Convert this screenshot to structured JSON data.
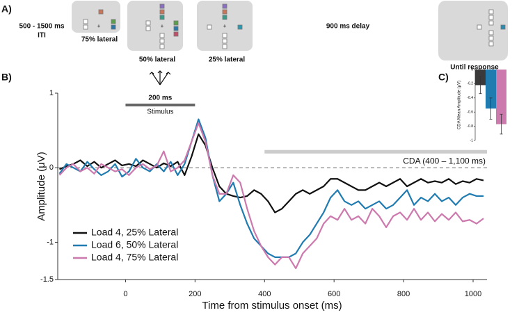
{
  "panel_a": {
    "label": "A)",
    "iti": [
      "500 - 1500 ms",
      "ITI"
    ],
    "conditions": [
      "75% lateral",
      "50% lateral",
      "25% lateral"
    ],
    "delay": "900 ms delay",
    "response": "Until response"
  },
  "chart_data": [
    {
      "type": "line",
      "panel_label": "B)",
      "xlabel": "Time from stimulus onset (ms)",
      "ylabel": "Amplitude (μV)",
      "xlim": [
        -195,
        1040
      ],
      "ylim": [
        -1.5,
        1
      ],
      "xticks": [
        0,
        200,
        400,
        600,
        800,
        1000
      ],
      "yticks": [
        1,
        0,
        -1,
        -1.5
      ],
      "zero_line": true,
      "legend": "lower left",
      "stimulus_interval": [
        0,
        200
      ],
      "interval_label": "200 ms",
      "stimulus_label": "Stimulus",
      "cda_interval": [
        400,
        1100
      ],
      "cda_label": "CDA (400 – 1,100 ms)",
      "x": [
        -190,
        -170,
        -150,
        -130,
        -110,
        -90,
        -70,
        -50,
        -30,
        -10,
        10,
        30,
        50,
        70,
        90,
        110,
        130,
        150,
        170,
        190,
        210,
        230,
        250,
        270,
        290,
        310,
        330,
        350,
        370,
        390,
        410,
        430,
        450,
        470,
        490,
        510,
        530,
        550,
        570,
        590,
        610,
        630,
        650,
        670,
        690,
        710,
        730,
        750,
        770,
        790,
        810,
        830,
        850,
        870,
        890,
        910,
        930,
        950,
        970,
        990,
        1010,
        1030
      ],
      "series": [
        {
          "name": "Load 4, 25% Lateral",
          "color": "#111111",
          "values": [
            -0.02,
            0.02,
            0.05,
            0.1,
            0.02,
            0.08,
            0.0,
            0.05,
            0.1,
            0.03,
            0.05,
            0.02,
            0.1,
            0.05,
            0.0,
            0.06,
            0.02,
            0.08,
            -0.1,
            0.15,
            0.45,
            0.3,
            0.0,
            -0.25,
            -0.35,
            -0.38,
            -0.4,
            -0.38,
            -0.3,
            -0.35,
            -0.45,
            -0.6,
            -0.55,
            -0.45,
            -0.35,
            -0.3,
            -0.35,
            -0.3,
            -0.25,
            -0.15,
            -0.15,
            -0.2,
            -0.25,
            -0.3,
            -0.3,
            -0.25,
            -0.2,
            -0.25,
            -0.2,
            -0.15,
            -0.25,
            -0.2,
            -0.15,
            -0.2,
            -0.18,
            -0.2,
            -0.15,
            -0.22,
            -0.18,
            -0.2,
            -0.15,
            -0.17
          ]
        },
        {
          "name": "Load 6, 50% Lateral",
          "color": "#1f7bb0",
          "values": [
            -0.08,
            0.05,
            0.0,
            -0.05,
            0.08,
            -0.02,
            -0.1,
            -0.05,
            0.05,
            -0.12,
            -0.05,
            0.12,
            0.0,
            -0.05,
            0.05,
            -0.05,
            0.08,
            -0.1,
            0.05,
            0.35,
            0.65,
            0.4,
            -0.1,
            -0.45,
            -0.35,
            -0.2,
            -0.5,
            -0.75,
            -0.95,
            -1.05,
            -1.15,
            -1.2,
            -1.2,
            -1.2,
            -1.15,
            -1.0,
            -0.9,
            -0.75,
            -0.6,
            -0.4,
            -0.3,
            -0.45,
            -0.5,
            -0.45,
            -0.55,
            -0.5,
            -0.45,
            -0.55,
            -0.5,
            -0.4,
            -0.3,
            -0.5,
            -0.4,
            -0.45,
            -0.35,
            -0.45,
            -0.4,
            -0.5,
            -0.4,
            -0.35,
            -0.38,
            -0.38
          ]
        },
        {
          "name": "Load 4, 75% Lateral",
          "color": "#cc79ad",
          "values": [
            -0.1,
            0.0,
            0.05,
            -0.05,
            0.0,
            -0.08,
            0.05,
            0.0,
            -0.05,
            -0.02,
            -0.1,
            0.0,
            0.05,
            -0.02,
            0.03,
            0.22,
            -0.05,
            0.0,
            0.1,
            0.35,
            0.6,
            0.35,
            -0.1,
            -0.35,
            -0.35,
            -0.1,
            -0.2,
            -0.55,
            -0.85,
            -1.05,
            -1.2,
            -1.3,
            -1.2,
            -1.2,
            -1.35,
            -1.15,
            -1.05,
            -0.95,
            -0.75,
            -0.65,
            -0.7,
            -0.55,
            -0.7,
            -0.65,
            -0.75,
            -0.55,
            -0.65,
            -0.8,
            -0.65,
            -0.6,
            -0.7,
            -0.55,
            -0.7,
            -0.6,
            -0.72,
            -0.62,
            -0.7,
            -0.6,
            -0.72,
            -0.7,
            -0.75,
            -0.68
          ]
        }
      ]
    },
    {
      "type": "bar",
      "panel_label": "C)",
      "ylabel": "CDA Mean Amplitude (μV)",
      "categories": [
        null,
        null,
        null
      ],
      "values": [
        -0.22,
        -0.55,
        -0.77
      ],
      "errors": [
        0.12,
        0.15,
        0.14
      ],
      "colors": [
        "#3a3a3a",
        "#1f7bb0",
        "#cc79ad"
      ],
      "ylim": [
        -1,
        0
      ],
      "yticks": [
        0,
        -0.2,
        -0.4,
        -0.6,
        -0.8,
        -1
      ]
    }
  ]
}
